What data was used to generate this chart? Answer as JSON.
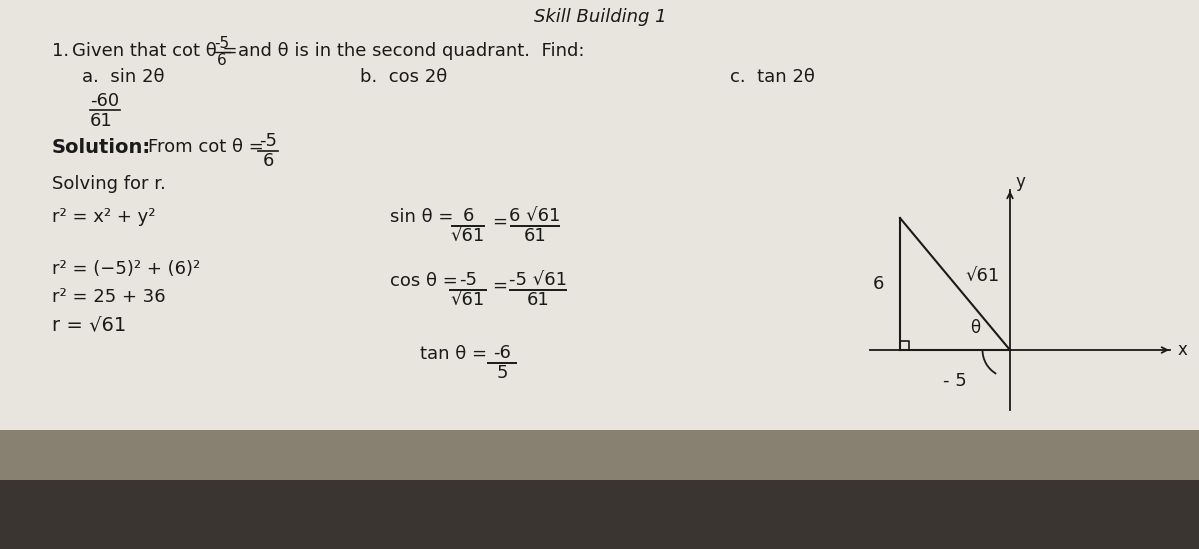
{
  "bg_color": "#c8c5be",
  "paper_color": "#e8e5df",
  "text_color": "#1a1a1a",
  "title_top": "Skill Building 1",
  "problem_number": "1.",
  "part_a_label": "a.  sin 2θ",
  "part_a_ans_num": "-60",
  "part_a_ans_den": "61",
  "part_b_label": "b.  cos 2θ",
  "part_c_label": "c.  tan 2θ",
  "solution_label": "Solution:",
  "solving_text": "Solving for r.",
  "eq1": "r² = x² + y²",
  "eq2": "r² = (−5)² + (6)²",
  "eq3": "r² = 25 + 36",
  "eq4": "r = √61",
  "diagram_label_y": "y",
  "diagram_label_x": "x",
  "diagram_hyp": "√61",
  "diagram_vert": "6",
  "diagram_horiz": "- 5",
  "diagram_theta": "θ",
  "cot_num": "-5",
  "cot_den": "6",
  "sin_num1": "6",
  "sin_den1": "√61",
  "sin_num2": "6 √61",
  "sin_den2": "61",
  "cos_num1": "-5",
  "cos_den1": "√61",
  "cos_num2": "-5 √61",
  "cos_den2": "61",
  "tan_num": "-6",
  "tan_den": "5"
}
